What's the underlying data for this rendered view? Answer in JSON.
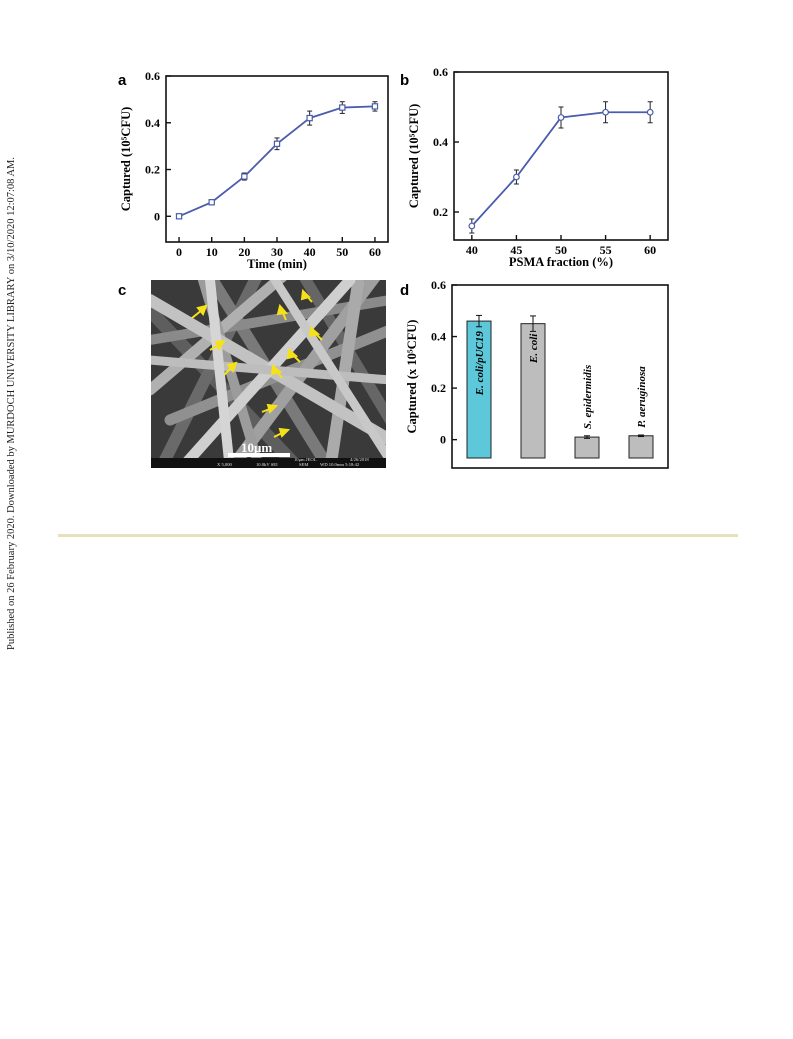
{
  "side_note": "Published on 26 February 2020. Downloaded by MURDOCH UNIVERSITY LIBRARY on 3/10/2020 12:07:08 AM.",
  "colors": {
    "line": "#4a5cad",
    "bar_highlight": "#5cc8d9",
    "bar_default": "#bdbdbd",
    "rule": "#e6e0bd"
  },
  "panels": {
    "a": {
      "letter": "a"
    },
    "b": {
      "letter": "b"
    },
    "c": {
      "letter": "c",
      "scale_label": "10μm",
      "sem_info": [
        "10μm JEOL",
        "4/26/2018",
        "X 5,000",
        "10.0kV SEI",
        "SEM",
        "WD 10.0mm 5:18:42"
      ]
    },
    "d": {
      "letter": "d"
    }
  },
  "chart_data": [
    {
      "panel": "a",
      "type": "line",
      "x": [
        0,
        10,
        20,
        30,
        40,
        50,
        60
      ],
      "series": [
        {
          "values": [
            0.0,
            0.06,
            0.17,
            0.31,
            0.42,
            0.465,
            0.47
          ],
          "errors": [
            0.005,
            0.01,
            0.015,
            0.025,
            0.03,
            0.025,
            0.02
          ]
        }
      ],
      "xticks": [
        "0",
        "10",
        "20",
        "30",
        "40",
        "50",
        "60"
      ],
      "yticks": [
        "0",
        "0.2",
        "0.4",
        "0.6"
      ],
      "xlabel": "Time (min)",
      "ylabel": "Captured (10⁵CFU)",
      "xlim": [
        -4,
        64
      ],
      "ylim": [
        -0.11,
        0.6
      ],
      "marker": "square"
    },
    {
      "panel": "b",
      "type": "line",
      "x": [
        40,
        45,
        50,
        55,
        60
      ],
      "series": [
        {
          "values": [
            0.16,
            0.3,
            0.47,
            0.485,
            0.485
          ],
          "errors": [
            0.02,
            0.02,
            0.03,
            0.03,
            0.03
          ]
        }
      ],
      "xticks": [
        "40",
        "45",
        "50",
        "55",
        "60"
      ],
      "yticks": [
        "0.2",
        "0.4",
        "0.6"
      ],
      "xlabel": "PSMA fraction (%)",
      "ylabel": "Captured (10⁵CFU)",
      "xlim": [
        38,
        62
      ],
      "ylim": [
        0.12,
        0.6
      ],
      "marker": "circle"
    },
    {
      "panel": "d",
      "type": "bar",
      "categories": [
        "E. coli/pUC19",
        "E. coli",
        "S. epidermidis",
        "P. aeruginosa"
      ],
      "values": [
        0.46,
        0.45,
        0.01,
        0.015
      ],
      "errors": [
        0.022,
        0.03,
        0.005,
        0.003
      ],
      "highlight_index": 0,
      "yticks": [
        "0",
        "0.2",
        "0.4",
        "0.6"
      ],
      "ylabel": "Captured (x 10⁵CFU)",
      "ylim": [
        -0.11,
        0.6
      ]
    }
  ]
}
